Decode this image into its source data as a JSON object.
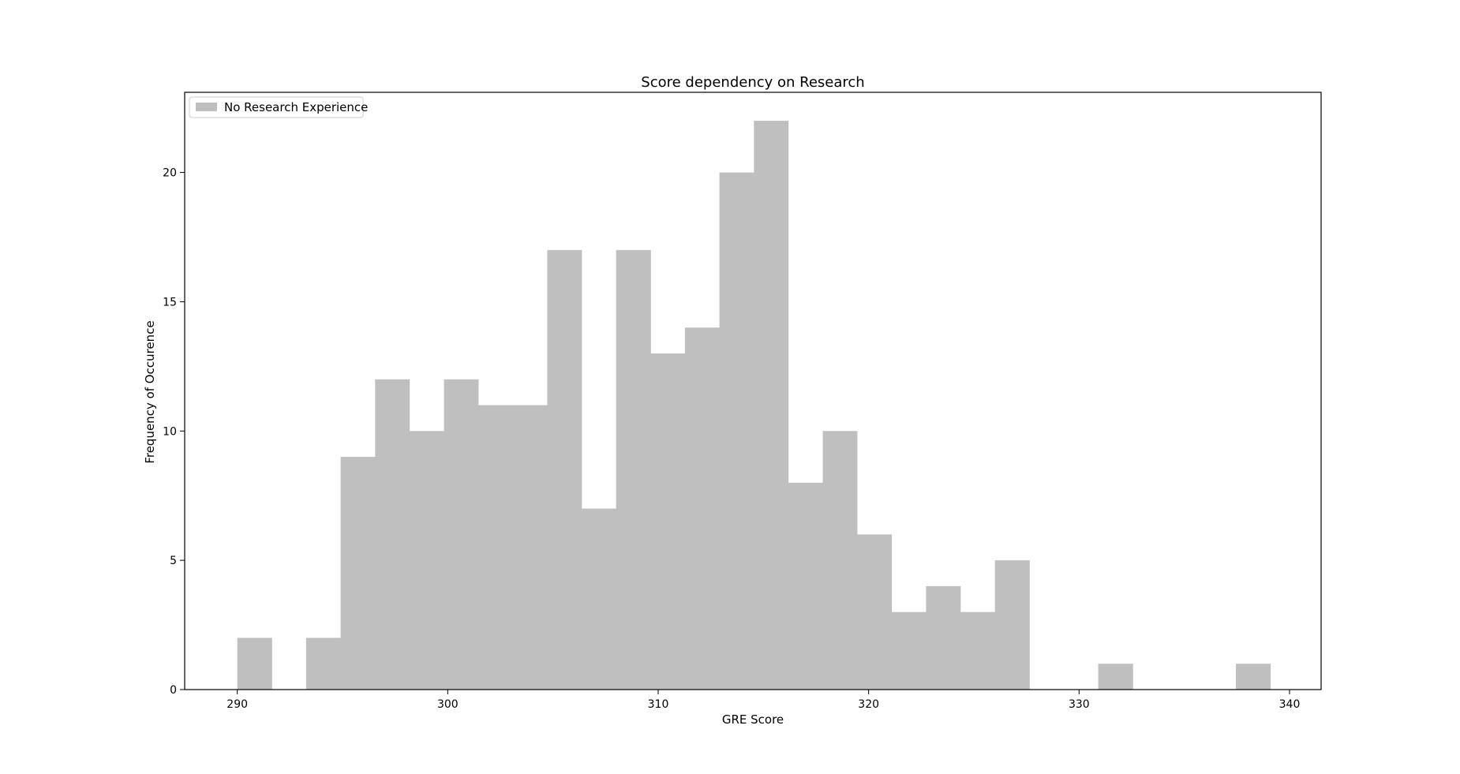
{
  "chart_data": {
    "type": "bar",
    "title": "Score dependency on Research",
    "xlabel": "GRE Score",
    "ylabel": "Frequency of Occurence",
    "xlim": [
      287.5,
      341.5
    ],
    "ylim": [
      0,
      23.1
    ],
    "xticks": [
      290,
      300,
      310,
      320,
      330,
      340
    ],
    "yticks": [
      0,
      5,
      10,
      15,
      20
    ],
    "grid": false,
    "legend_position": "top-left",
    "series": [
      {
        "name": "No Research Experience",
        "color": "#bfbfbf",
        "bins": [
          {
            "x0": 290.0,
            "x1": 291.64,
            "count": 2
          },
          {
            "x0": 291.64,
            "x1": 293.27,
            "count": 0
          },
          {
            "x0": 293.27,
            "x1": 294.91,
            "count": 2
          },
          {
            "x0": 294.91,
            "x1": 296.55,
            "count": 9
          },
          {
            "x0": 296.55,
            "x1": 298.18,
            "count": 12
          },
          {
            "x0": 298.18,
            "x1": 299.82,
            "count": 10
          },
          {
            "x0": 299.82,
            "x1": 301.45,
            "count": 12
          },
          {
            "x0": 301.45,
            "x1": 303.09,
            "count": 11
          },
          {
            "x0": 303.09,
            "x1": 304.73,
            "count": 11
          },
          {
            "x0": 304.73,
            "x1": 306.36,
            "count": 17
          },
          {
            "x0": 306.36,
            "x1": 308.0,
            "count": 7
          },
          {
            "x0": 308.0,
            "x1": 309.64,
            "count": 17
          },
          {
            "x0": 309.64,
            "x1": 311.27,
            "count": 13
          },
          {
            "x0": 311.27,
            "x1": 312.91,
            "count": 14
          },
          {
            "x0": 312.91,
            "x1": 314.55,
            "count": 20
          },
          {
            "x0": 314.55,
            "x1": 316.18,
            "count": 22
          },
          {
            "x0": 316.18,
            "x1": 317.82,
            "count": 8
          },
          {
            "x0": 317.82,
            "x1": 319.45,
            "count": 10
          },
          {
            "x0": 319.45,
            "x1": 321.09,
            "count": 6
          },
          {
            "x0": 321.09,
            "x1": 322.73,
            "count": 3
          },
          {
            "x0": 322.73,
            "x1": 324.36,
            "count": 4
          },
          {
            "x0": 324.36,
            "x1": 326.0,
            "count": 3
          },
          {
            "x0": 326.0,
            "x1": 327.64,
            "count": 5
          },
          {
            "x0": 327.64,
            "x1": 329.27,
            "count": 0
          },
          {
            "x0": 329.27,
            "x1": 330.91,
            "count": 0
          },
          {
            "x0": 330.91,
            "x1": 332.55,
            "count": 1
          },
          {
            "x0": 332.55,
            "x1": 334.18,
            "count": 0
          },
          {
            "x0": 334.18,
            "x1": 335.82,
            "count": 0
          },
          {
            "x0": 335.82,
            "x1": 337.45,
            "count": 0
          },
          {
            "x0": 337.45,
            "x1": 339.09,
            "count": 1
          }
        ]
      }
    ]
  }
}
